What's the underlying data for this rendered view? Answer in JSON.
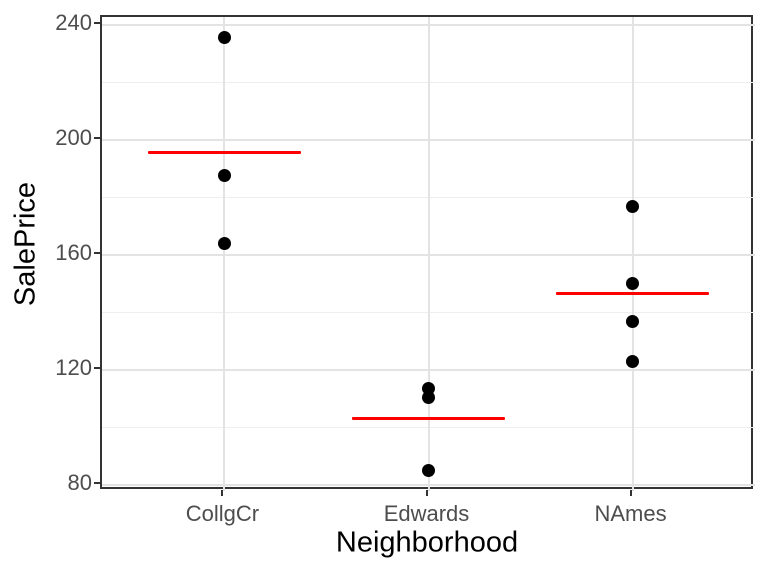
{
  "chart_data": {
    "type": "scatter",
    "subtype": "strip-plot-with-group-means",
    "title": "",
    "xlabel": "Neighborhood",
    "ylabel": "SalePrice",
    "categories": [
      "CollgCr",
      "Edwards",
      "NAmes"
    ],
    "series": [
      {
        "name": "CollgCr",
        "values": [
          235.5,
          187.5,
          164
        ]
      },
      {
        "name": "Edwards",
        "values": [
          113.5,
          110.5,
          85
        ]
      },
      {
        "name": "NAmes",
        "values": [
          177,
          150,
          137,
          123
        ]
      }
    ],
    "group_means": [
      195.7,
      103,
      146.75
    ],
    "y_ticks": [
      80,
      120,
      160,
      200,
      240
    ],
    "y_minor_ticks": [
      100,
      140,
      180,
      220
    ],
    "ylim": [
      77.9,
      242.8
    ],
    "grid": true,
    "legend_position": "none",
    "colors": {
      "point": "#000000",
      "mean_line": "#ff0000",
      "grid_major": "#e3e3e3",
      "grid_minor": "#eeeeee",
      "panel_border": "#333333",
      "tick_label": "#4d4d4d",
      "axis_title": "#000000",
      "background": "#ffffff"
    }
  }
}
